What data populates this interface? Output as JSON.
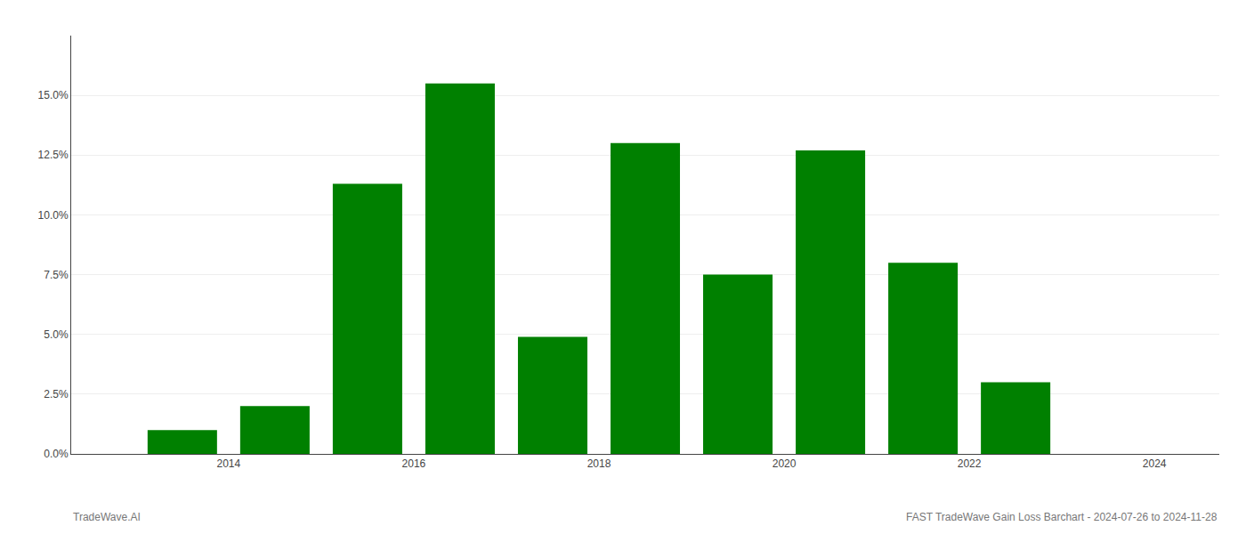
{
  "chart_data": {
    "type": "bar",
    "x": [
      2013,
      2014,
      2015,
      2016,
      2017,
      2018,
      2019,
      2020,
      2021,
      2022,
      2023
    ],
    "values": [
      0.01,
      0.02,
      0.113,
      0.155,
      0.049,
      0.13,
      0.075,
      0.127,
      0.08,
      0.03,
      0.0
    ],
    "color": "#008000",
    "xlim": [
      2012.3,
      2024.7
    ],
    "xticks": [
      2014,
      2016,
      2018,
      2020,
      2022,
      2024
    ],
    "ylim": [
      0.0,
      0.175
    ],
    "yticks": [
      {
        "value": 0.0,
        "label": "0.0%"
      },
      {
        "value": 0.025,
        "label": "2.5%"
      },
      {
        "value": 0.05,
        "label": "5.0%"
      },
      {
        "value": 0.075,
        "label": "7.5%"
      },
      {
        "value": 0.1,
        "label": "10.0%"
      },
      {
        "value": 0.125,
        "label": "12.5%"
      },
      {
        "value": 0.15,
        "label": "15.0%"
      }
    ],
    "grid": true,
    "annotations": [
      "TradeWave.AI",
      "FAST TradeWave Gain Loss Barchart - 2024-07-26 to 2024-11-28"
    ]
  }
}
